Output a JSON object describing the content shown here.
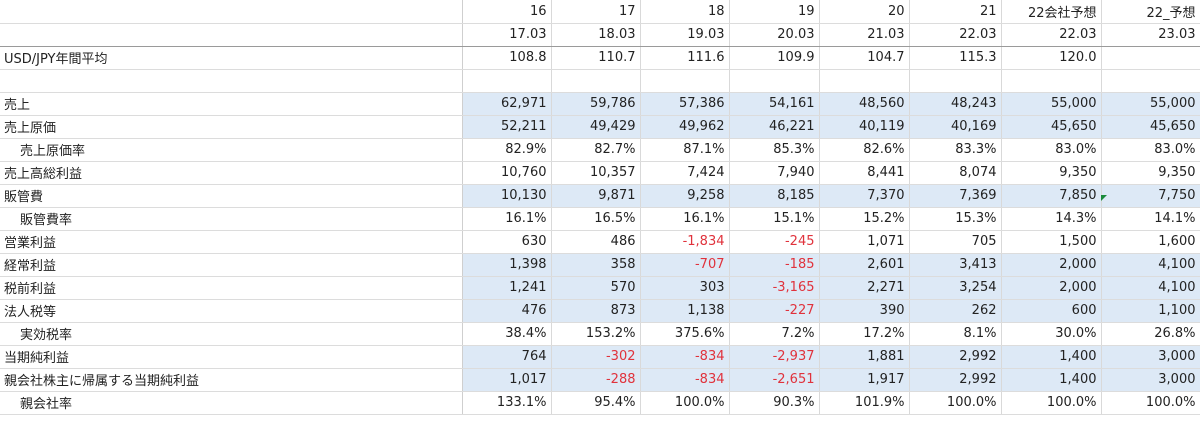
{
  "columns": [
    "16",
    "17",
    "18",
    "19",
    "20",
    "21",
    "22会社予想",
    "22_予想"
  ],
  "periods": [
    "17.03",
    "18.03",
    "19.03",
    "20.03",
    "21.03",
    "22.03",
    "22.03",
    "23.03"
  ],
  "fx": {
    "label": "USD/JPY年間平均",
    "values": [
      "108.8",
      "110.7",
      "111.6",
      "109.9",
      "104.7",
      "115.3",
      "120.0",
      ""
    ]
  },
  "rows": [
    {
      "label": "売上",
      "indent": false,
      "blue": true,
      "values": [
        "62,971",
        "59,786",
        "57,386",
        "54,161",
        "48,560",
        "48,243",
        "55,000",
        "55,000"
      ],
      "neg": []
    },
    {
      "label": "売上原価",
      "indent": false,
      "blue": true,
      "values": [
        "52,211",
        "49,429",
        "49,962",
        "46,221",
        "40,119",
        "40,169",
        "45,650",
        "45,650"
      ],
      "neg": []
    },
    {
      "label": "売上原価率",
      "indent": true,
      "blue": false,
      "values": [
        "82.9%",
        "82.7%",
        "87.1%",
        "85.3%",
        "82.6%",
        "83.3%",
        "83.0%",
        "83.0%"
      ],
      "neg": []
    },
    {
      "label": "売上高総利益",
      "indent": false,
      "blue": false,
      "values": [
        "10,760",
        "10,357",
        "7,424",
        "7,940",
        "8,441",
        "8,074",
        "9,350",
        "9,350"
      ],
      "neg": []
    },
    {
      "label": "販管費",
      "indent": false,
      "blue": true,
      "values": [
        "10,130",
        "9,871",
        "9,258",
        "8,185",
        "7,370",
        "7,369",
        "7,850",
        "7,750"
      ],
      "neg": []
    },
    {
      "label": "販管費率",
      "indent": true,
      "blue": false,
      "values": [
        "16.1%",
        "16.5%",
        "16.1%",
        "15.1%",
        "15.2%",
        "15.3%",
        "14.3%",
        "14.1%"
      ],
      "neg": []
    },
    {
      "label": "営業利益",
      "indent": false,
      "blue": false,
      "values": [
        "630",
        "486",
        "-1,834",
        "-245",
        "1,071",
        "705",
        "1,500",
        "1,600"
      ],
      "neg": [
        2,
        3
      ]
    },
    {
      "label": "経常利益",
      "indent": false,
      "blue": true,
      "values": [
        "1,398",
        "358",
        "-707",
        "-185",
        "2,601",
        "3,413",
        "2,000",
        "4,100"
      ],
      "neg": [
        2,
        3
      ]
    },
    {
      "label": "税前利益",
      "indent": false,
      "blue": true,
      "values": [
        "1,241",
        "570",
        "303",
        "-3,165",
        "2,271",
        "3,254",
        "2,000",
        "4,100"
      ],
      "neg": [
        3
      ]
    },
    {
      "label": "法人税等",
      "indent": false,
      "blue": true,
      "values": [
        "476",
        "873",
        "1,138",
        "-227",
        "390",
        "262",
        "600",
        "1,100"
      ],
      "neg": [
        3
      ]
    },
    {
      "label": "実効税率",
      "indent": true,
      "blue": false,
      "values": [
        "38.4%",
        "153.2%",
        "375.6%",
        "7.2%",
        "17.2%",
        "8.1%",
        "30.0%",
        "26.8%"
      ],
      "neg": []
    },
    {
      "label": "当期純利益",
      "indent": false,
      "blue": true,
      "values": [
        "764",
        "-302",
        "-834",
        "-2,937",
        "1,881",
        "2,992",
        "1,400",
        "3,000"
      ],
      "neg": [
        1,
        2,
        3
      ]
    },
    {
      "label": "親会社株主に帰属する当期純利益",
      "indent": false,
      "blue": true,
      "values": [
        "1,017",
        "-288",
        "-834",
        "-2,651",
        "1,917",
        "2,992",
        "1,400",
        "3,000"
      ],
      "neg": [
        1,
        2,
        3
      ]
    },
    {
      "label": "親会社率",
      "indent": true,
      "blue": false,
      "values": [
        "133.1%",
        "95.4%",
        "100.0%",
        "90.3%",
        "101.9%",
        "100.0%",
        "100.0%",
        "100.0%"
      ],
      "neg": []
    }
  ],
  "colors": {
    "blue_fill": "#dde9f6",
    "negative": "#e0323c",
    "comment_marker": "#1a8a3a"
  }
}
